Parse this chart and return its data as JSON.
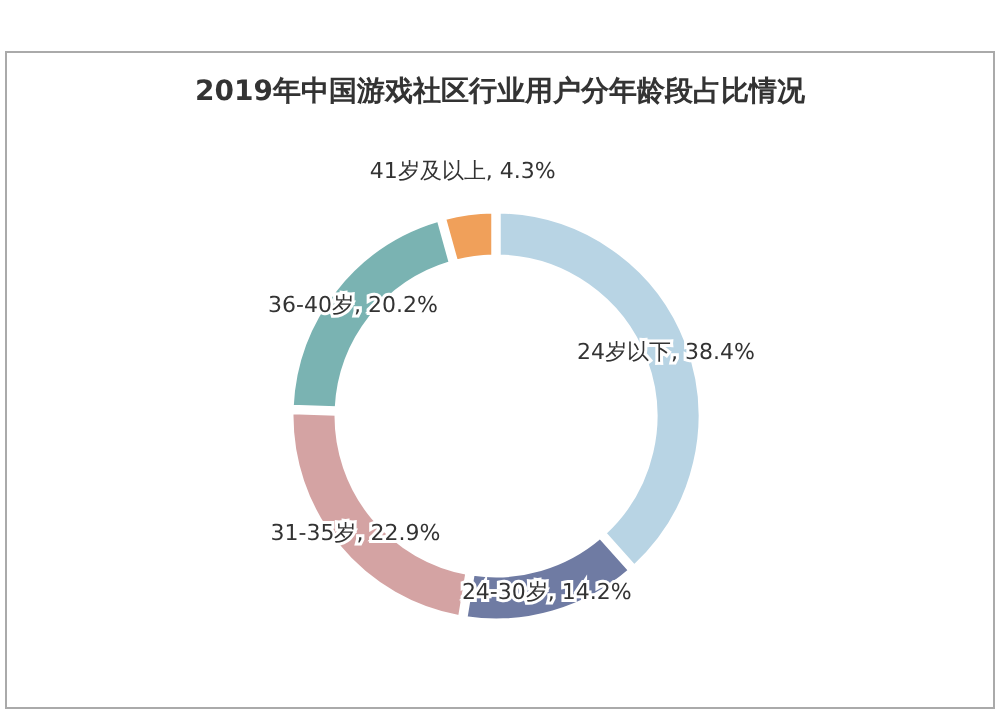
{
  "chart_data": {
    "type": "donut",
    "title": "2019年中国游戏社区行业用户分年龄段占比情况",
    "categories": [
      "24岁以下",
      "24-30岁",
      "31-35岁",
      "36-40岁",
      "41岁及以上"
    ],
    "values": [
      38.4,
      14.2,
      22.9,
      20.2,
      4.3
    ],
    "value_labels": [
      "38.4%",
      "14.2%",
      "22.9%",
      "20.2%",
      "4.3%"
    ],
    "colors": [
      "#b8d4e4",
      "#6f7ba3",
      "#d4a3a3",
      "#7ab3b2",
      "#f0a05a"
    ]
  }
}
